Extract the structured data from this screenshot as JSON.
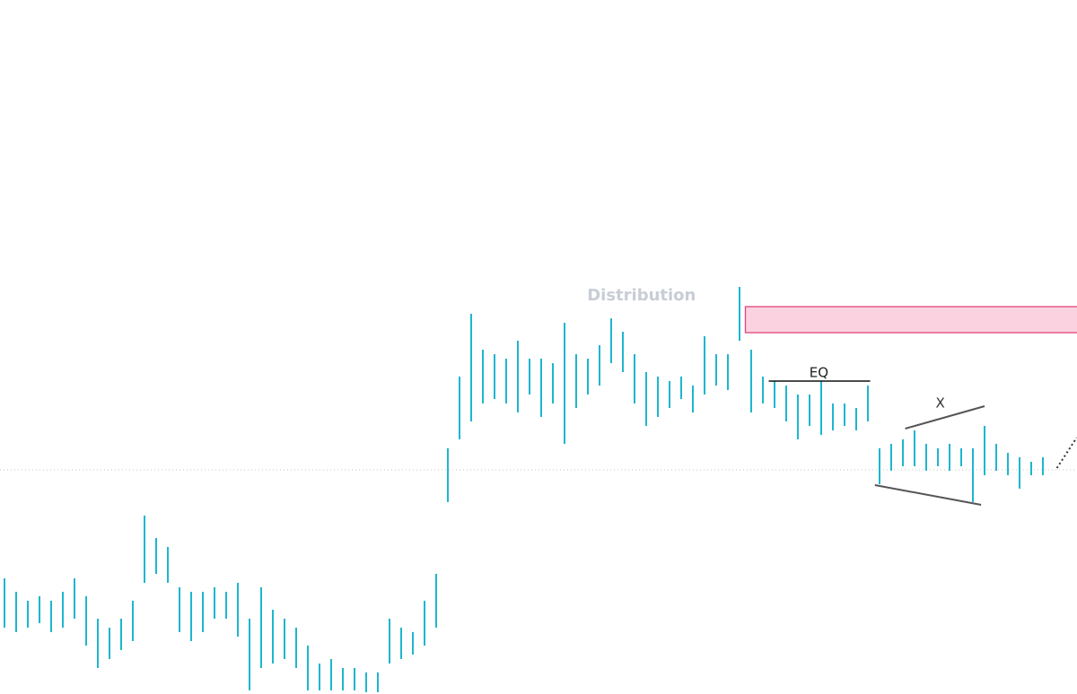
{
  "chart_data": {
    "type": "hilo",
    "color": "#1eb6cf",
    "ylim": [
      0,
      774
    ],
    "high": [
      129,
      114,
      104,
      109,
      104,
      114,
      129,
      109,
      84,
      74,
      84,
      104,
      199,
      174,
      164,
      119,
      114,
      114,
      119,
      114,
      124,
      84,
      119,
      94,
      84,
      74,
      54,
      34,
      39,
      29,
      29,
      24,
      24,
      84,
      74,
      69,
      104,
      134,
      274,
      354,
      424,
      384,
      379,
      374,
      394,
      374,
      374,
      369,
      414,
      379,
      374,
      389,
      419,
      404,
      379,
      359,
      354,
      349,
      354,
      344,
      399,
      379,
      379,
      454,
      384,
      354,
      349,
      344,
      334,
      334,
      349,
      324,
      324,
      319,
      344,
      274,
      279,
      284,
      294,
      279,
      274,
      279,
      274,
      274,
      299,
      279,
      269,
      264,
      259,
      264
    ],
    "low": [
      74,
      69,
      74,
      79,
      69,
      74,
      84,
      54,
      29,
      39,
      49,
      59,
      124,
      134,
      124,
      69,
      59,
      69,
      84,
      84,
      64,
      4,
      29,
      34,
      39,
      29,
      4,
      4,
      4,
      4,
      4,
      2,
      2,
      34,
      39,
      44,
      54,
      74,
      214,
      284,
      304,
      324,
      329,
      324,
      314,
      334,
      309,
      324,
      279,
      319,
      334,
      344,
      369,
      359,
      324,
      299,
      309,
      319,
      329,
      314,
      334,
      344,
      339,
      394,
      314,
      324,
      319,
      304,
      284,
      299,
      289,
      294,
      299,
      294,
      304,
      234,
      249,
      254,
      254,
      249,
      254,
      249,
      254,
      214,
      244,
      249,
      244,
      229,
      244,
      244
    ],
    "annotations": {
      "distribution": {
        "text": "Distribution",
        "x": 54.6,
        "y": 444,
        "color": "#c8cdd6"
      },
      "supply_zone": {
        "x0": 63.5,
        "y0": 403,
        "y1": 432,
        "color": "#e0457b",
        "fill": "#fbd3e0"
      },
      "eq": {
        "text": "EQ",
        "x0": 65.5,
        "x1": 74.2,
        "y": 349,
        "label_x": 69.8,
        "label_y": 358
      },
      "wedge": {
        "text": "X",
        "upper": [
          [
            77.2,
            296
          ],
          [
            84,
            321
          ]
        ],
        "lower": [
          [
            74.6,
            233
          ],
          [
            83.7,
            211
          ]
        ],
        "label_x": 80.2,
        "label_y": 324
      },
      "level": 250,
      "projection": [
        [
          90.2,
          252
        ],
        [
          91.9,
          286
        ]
      ]
    }
  }
}
